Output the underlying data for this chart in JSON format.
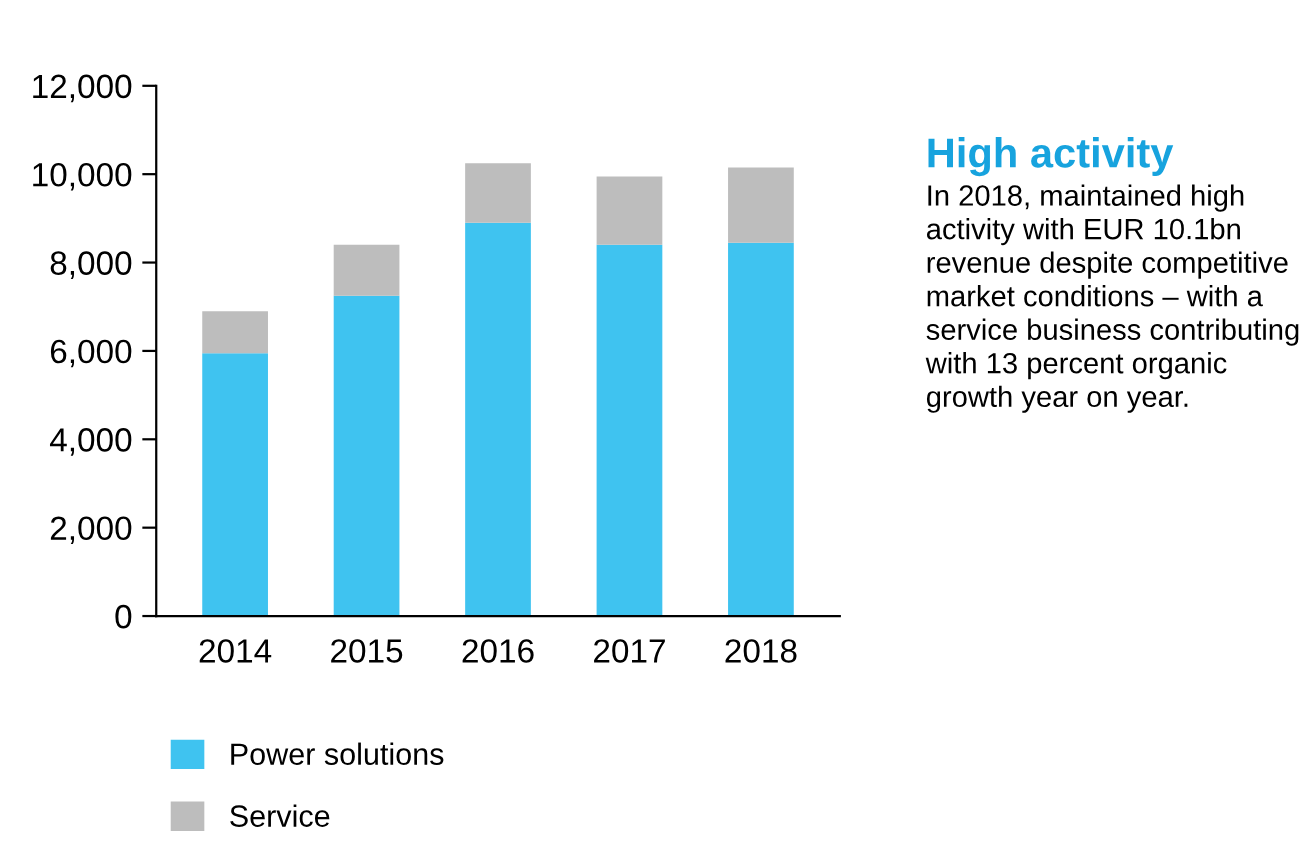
{
  "chart_data": {
    "type": "bar",
    "stacked": true,
    "title": "High activity",
    "annotations": [
      "In 2018, maintained high activity with EUR 10.1bn revenue despite competitive market conditions – with a service business contributing with 13 percent organic growth year on year."
    ],
    "categories": [
      "2014",
      "2015",
      "2016",
      "2017",
      "2018"
    ],
    "series": [
      {
        "name": "Power solutions",
        "color": "#3fc3f0",
        "values": [
          5950,
          7250,
          8900,
          8400,
          8450
        ]
      },
      {
        "name": "Service",
        "color": "#bdbdbd",
        "values": [
          950,
          1150,
          1350,
          1550,
          1700
        ]
      }
    ],
    "ylim": [
      0,
      12000
    ],
    "yticks": [
      {
        "value": 0,
        "label": "0"
      },
      {
        "value": 2000,
        "label": "2,000"
      },
      {
        "value": 4000,
        "label": "4,000"
      },
      {
        "value": 6000,
        "label": "6,000"
      },
      {
        "value": 8000,
        "label": "8,000"
      },
      {
        "value": 10000,
        "label": "10,000"
      },
      {
        "value": 12000,
        "label": "12,000"
      }
    ],
    "grid": false,
    "legend": "bottom"
  }
}
